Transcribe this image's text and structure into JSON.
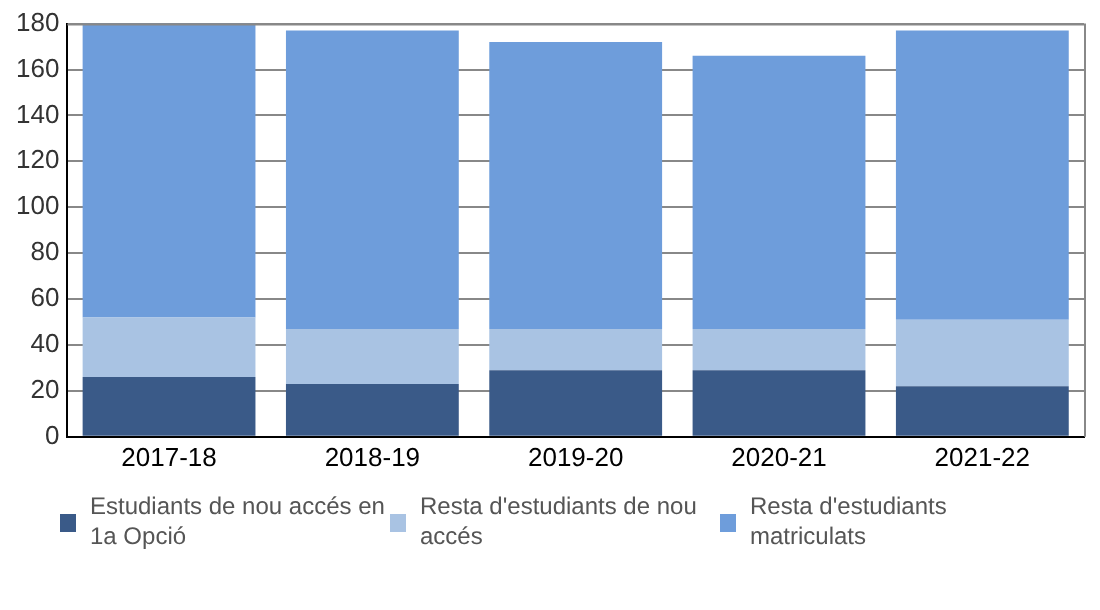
{
  "chart_data": {
    "type": "bar",
    "stacked": true,
    "categories": [
      "2017-18",
      "2018-19",
      "2019-20",
      "2020-21",
      "2021-22"
    ],
    "series": [
      {
        "name": "Estudiants de nou accés en 1a Opció",
        "color": "#3a5a88",
        "values": [
          26,
          23,
          29,
          29,
          22
        ]
      },
      {
        "name": "Resta d'estudiants de nou accés",
        "color": "#a9c3e3",
        "values": [
          26,
          24,
          18,
          18,
          29
        ]
      },
      {
        "name": "Resta d'estudiants matriculats",
        "color": "#6e9ddb",
        "values": [
          128,
          130,
          125,
          119,
          126
        ]
      }
    ],
    "ylim": [
      0,
      180
    ],
    "yticks": [
      0,
      20,
      40,
      60,
      80,
      100,
      120,
      140,
      160,
      180
    ],
    "grid": "y",
    "legend": "bottom"
  }
}
